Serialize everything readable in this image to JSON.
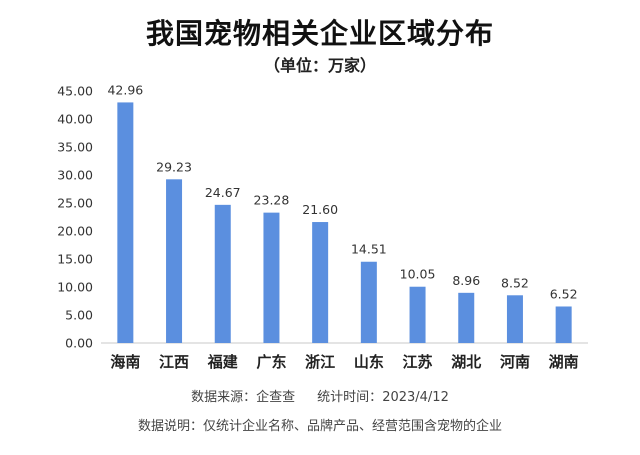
{
  "title": "我国宠物相关企业区域分布",
  "subtitle": "（单位：万家）",
  "footer": {
    "source_label": "数据来源：",
    "source_value": "企查查",
    "time_label": "统计时间：",
    "time_value": "2023/4/12",
    "note": "数据说明：仅统计企业名称、品牌产品、经营范围含宠物的企业"
  },
  "colors": {
    "bar": "#5b8fdf",
    "axis": "#c8c8c8",
    "text": "#222222"
  },
  "chart_data": {
    "type": "bar",
    "title": "我国宠物相关企业区域分布",
    "subtitle": "（单位：万家）",
    "categories": [
      "海南",
      "江西",
      "福建",
      "广东",
      "浙江",
      "山东",
      "江苏",
      "湖北",
      "河南",
      "湖南"
    ],
    "values": [
      42.96,
      29.23,
      24.67,
      23.28,
      21.6,
      14.51,
      10.05,
      8.96,
      8.52,
      6.52
    ],
    "data_labels": [
      "42.96",
      "29.23",
      "24.67",
      "23.28",
      "21.60",
      "14.51",
      "10.05",
      "8.96",
      "8.52",
      "6.52"
    ],
    "ylim": [
      0,
      45
    ],
    "yticks": [
      0,
      5,
      10,
      15,
      20,
      25,
      30,
      35,
      40,
      45
    ],
    "ytick_labels": [
      "0.00",
      "5.00",
      "10.00",
      "15.00",
      "20.00",
      "25.00",
      "30.00",
      "35.00",
      "40.00",
      "45.00"
    ],
    "grid": false,
    "legend": "none",
    "xlabel": "",
    "ylabel": ""
  }
}
